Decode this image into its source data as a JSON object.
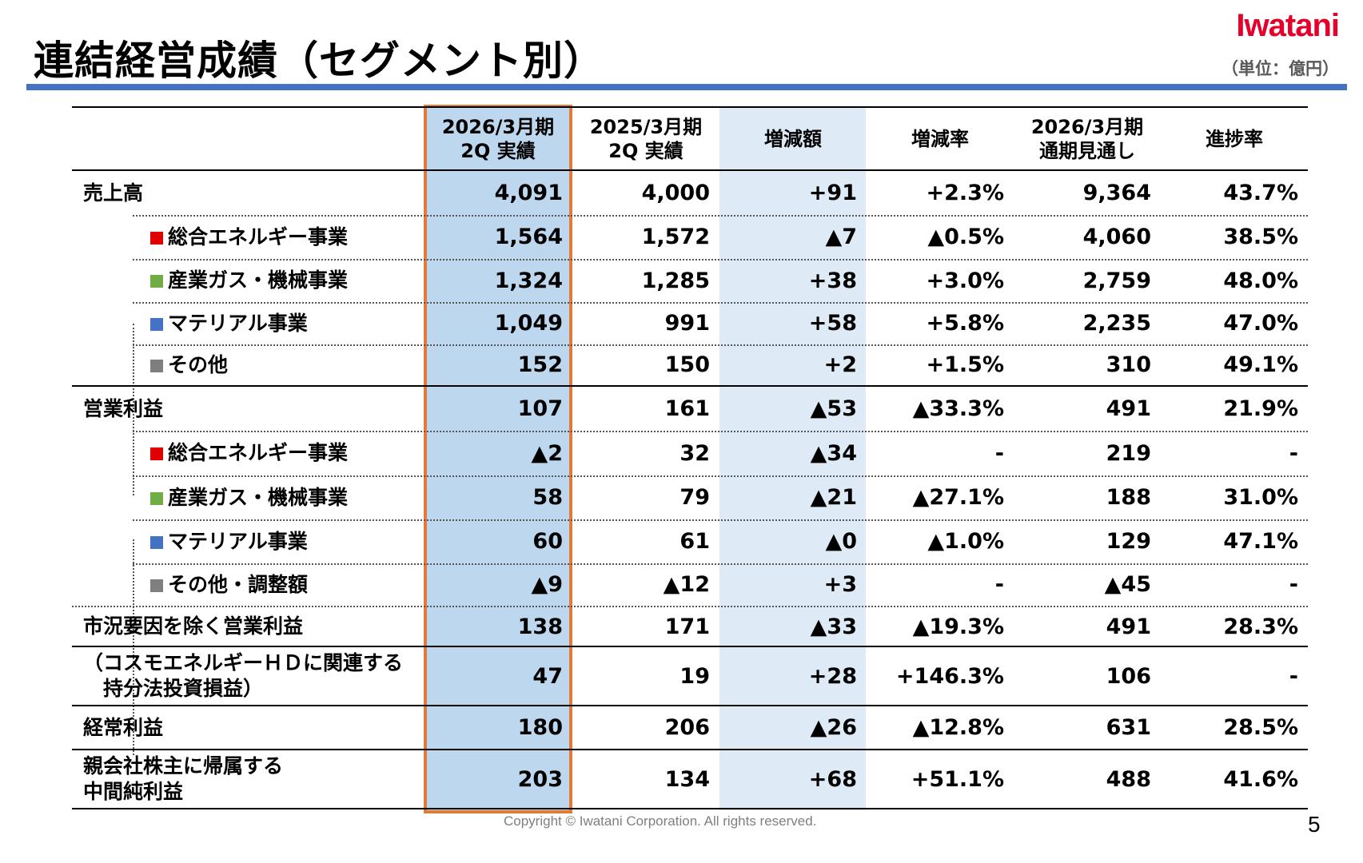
{
  "header": {
    "title": "連結経営成績（セグメント別）",
    "logo": "Iwatani",
    "unit": "（単位：億円）"
  },
  "colors": {
    "accent_bar": "#4472c4",
    "highlight_col": "#bdd7ee",
    "highlight_border": "#e07b39",
    "diff_col": "#deebf7",
    "energy": "#e00000",
    "gas": "#70ad47",
    "material": "#4472c4",
    "other": "#7f7f7f",
    "logo": "#e4002b"
  },
  "columns": [
    [
      "2026/3月期",
      "2Q 実績"
    ],
    [
      "2025/3月期",
      "2Q 実績"
    ],
    [
      "増減額",
      ""
    ],
    [
      "増減率",
      ""
    ],
    [
      "2026/3月期",
      "通期見通し"
    ],
    [
      "進捗率",
      ""
    ]
  ],
  "rows": [
    {
      "label": "売上高",
      "values": [
        "4,091",
        "4,000",
        "+91",
        "+2.3%",
        "9,364",
        "43.7%"
      ]
    },
    {
      "label": "総合エネルギー事業",
      "marker": "energy",
      "values": [
        "1,564",
        "1,572",
        "▲7",
        "▲0.5%",
        "4,060",
        "38.5%"
      ]
    },
    {
      "label": "産業ガス・機械事業",
      "marker": "gas",
      "values": [
        "1,324",
        "1,285",
        "+38",
        "+3.0%",
        "2,759",
        "48.0%"
      ]
    },
    {
      "label": "マテリアル事業",
      "marker": "material",
      "values": [
        "1,049",
        "991",
        "+58",
        "+5.8%",
        "2,235",
        "47.0%"
      ]
    },
    {
      "label": "その他",
      "marker": "other",
      "values": [
        "152",
        "150",
        "+2",
        "+1.5%",
        "310",
        "49.1%"
      ]
    },
    {
      "label": "営業利益",
      "values": [
        "107",
        "161",
        "▲53",
        "▲33.3%",
        "491",
        "21.9%"
      ]
    },
    {
      "label": "総合エネルギー事業",
      "marker": "energy",
      "values": [
        "▲2",
        "32",
        "▲34",
        "-",
        "219",
        "-"
      ]
    },
    {
      "label": "産業ガス・機械事業",
      "marker": "gas",
      "values": [
        "58",
        "79",
        "▲21",
        "▲27.1%",
        "188",
        "31.0%"
      ]
    },
    {
      "label": "マテリアル事業",
      "marker": "material",
      "values": [
        "60",
        "61",
        "▲0",
        "▲1.0%",
        "129",
        "47.1%"
      ]
    },
    {
      "label": "その他・調整額",
      "marker": "other",
      "values": [
        "▲9",
        "▲12",
        "+3",
        "-",
        "▲45",
        "-"
      ]
    },
    {
      "label": "市況要因を除く営業利益",
      "values": [
        "138",
        "171",
        "▲33",
        "▲19.3%",
        "491",
        "28.3%"
      ]
    },
    {
      "label": "（コスモエネルギーＨＤに関連する",
      "label2": "　持分法投資損益）",
      "values": [
        "47",
        "19",
        "+28",
        "+146.3%",
        "106",
        "-"
      ]
    },
    {
      "label": "経常利益",
      "values": [
        "180",
        "206",
        "▲26",
        "▲12.8%",
        "631",
        "28.5%"
      ]
    },
    {
      "label": "親会社株主に帰属する",
      "label2": "中間純利益",
      "values": [
        "203",
        "134",
        "+68",
        "+51.1%",
        "488",
        "41.6%"
      ]
    }
  ],
  "footer": {
    "copyright": "Copyright © Iwatani Corporation. All rights reserved.",
    "page": "5"
  }
}
